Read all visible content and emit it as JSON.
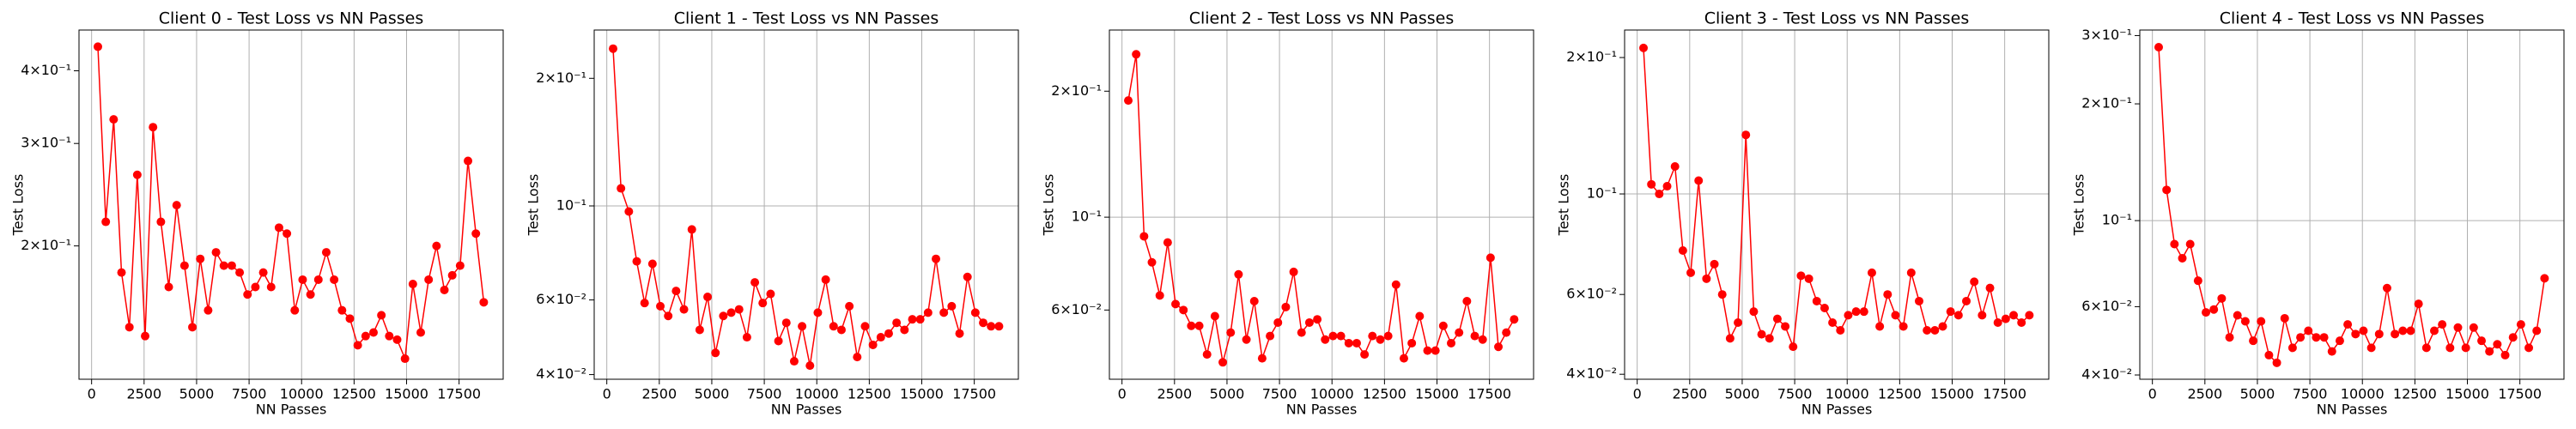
{
  "chart_data": [
    {
      "type": "line",
      "title": "Client 0 - Test Loss vs NN Passes",
      "xlabel": "NN Passes",
      "ylabel": "Test Loss",
      "color": "red",
      "log_y": true,
      "grid_x": true,
      "xlim": [
        -600,
        19600
      ],
      "xticks": [
        0,
        2500,
        5000,
        7500,
        10000,
        12500,
        15000,
        17500
      ],
      "ylim": [
        0.118,
        0.47
      ],
      "yticks": [
        {
          "value": 0.2,
          "label": "2×10⁻¹"
        },
        {
          "value": 0.3,
          "label": "3×10⁻¹"
        },
        {
          "value": 0.4,
          "label": "4×10⁻¹"
        }
      ],
      "ygrid": [],
      "x": [
        300,
        675,
        1050,
        1425,
        1800,
        2175,
        2550,
        2925,
        3300,
        3675,
        4050,
        4425,
        4800,
        5175,
        5550,
        5925,
        6300,
        6675,
        7050,
        7425,
        7800,
        8175,
        8550,
        8925,
        9300,
        9675,
        10050,
        10425,
        10800,
        11175,
        11550,
        11925,
        12300,
        12675,
        13050,
        13425,
        13800,
        14175,
        14550,
        14925,
        15300,
        15675,
        16050,
        16425,
        16800,
        17175,
        17550,
        17925,
        18300,
        18675
      ],
      "values": [
        0.44,
        0.22,
        0.33,
        0.18,
        0.145,
        0.265,
        0.14,
        0.32,
        0.22,
        0.17,
        0.235,
        0.185,
        0.145,
        0.19,
        0.155,
        0.195,
        0.185,
        0.185,
        0.18,
        0.165,
        0.17,
        0.18,
        0.17,
        0.215,
        0.21,
        0.155,
        0.175,
        0.165,
        0.175,
        0.195,
        0.175,
        0.155,
        0.15,
        0.135,
        0.14,
        0.142,
        0.152,
        0.14,
        0.138,
        0.128,
        0.172,
        0.142,
        0.175,
        0.2,
        0.168,
        0.178,
        0.185,
        0.28,
        0.21,
        0.16
      ]
    },
    {
      "type": "line",
      "title": "Client 1 - Test Loss vs NN Passes",
      "xlabel": "NN Passes",
      "ylabel": "Test Loss",
      "color": "red",
      "log_y": true,
      "grid_x": true,
      "xlim": [
        -600,
        19600
      ],
      "xticks": [
        0,
        2500,
        5000,
        7500,
        10000,
        12500,
        15000,
        17500
      ],
      "ylim": [
        0.039,
        0.26
      ],
      "yticks": [
        {
          "value": 0.04,
          "label": "4×10⁻²"
        },
        {
          "value": 0.06,
          "label": "6×10⁻²"
        },
        {
          "value": 0.1,
          "label": "10⁻¹"
        },
        {
          "value": 0.2,
          "label": "2×10⁻¹"
        }
      ],
      "ygrid": [
        0.1
      ],
      "x": [
        300,
        675,
        1050,
        1425,
        1800,
        2175,
        2550,
        2925,
        3300,
        3675,
        4050,
        4425,
        4800,
        5175,
        5550,
        5925,
        6300,
        6675,
        7050,
        7425,
        7800,
        8175,
        8550,
        8925,
        9300,
        9675,
        10050,
        10425,
        10800,
        11175,
        11550,
        11925,
        12300,
        12675,
        13050,
        13425,
        13800,
        14175,
        14550,
        14925,
        15300,
        15675,
        16050,
        16425,
        16800,
        17175,
        17550,
        17925,
        18300,
        18675
      ],
      "values": [
        0.235,
        0.11,
        0.097,
        0.074,
        0.059,
        0.073,
        0.058,
        0.055,
        0.063,
        0.057,
        0.088,
        0.051,
        0.061,
        0.045,
        0.055,
        0.056,
        0.057,
        0.049,
        0.066,
        0.059,
        0.062,
        0.048,
        0.053,
        0.043,
        0.052,
        0.042,
        0.056,
        0.067,
        0.052,
        0.051,
        0.058,
        0.044,
        0.052,
        0.047,
        0.049,
        0.05,
        0.053,
        0.051,
        0.054,
        0.054,
        0.056,
        0.075,
        0.056,
        0.058,
        0.05,
        0.068,
        0.056,
        0.053,
        0.052,
        0.052
      ]
    },
    {
      "type": "line",
      "title": "Client 2 - Test Loss vs NN Passes",
      "xlabel": "NN Passes",
      "ylabel": "Test Loss",
      "color": "red",
      "log_y": true,
      "grid_x": true,
      "xlim": [
        -600,
        19600
      ],
      "xticks": [
        0,
        2500,
        5000,
        7500,
        10000,
        12500,
        15000,
        17500
      ],
      "ylim": [
        0.041,
        0.28
      ],
      "yticks": [
        {
          "value": 0.06,
          "label": "6×10⁻²"
        },
        {
          "value": 0.1,
          "label": "10⁻¹"
        },
        {
          "value": 0.2,
          "label": "2×10⁻¹"
        }
      ],
      "ygrid": [
        0.1
      ],
      "x": [
        300,
        675,
        1050,
        1425,
        1800,
        2175,
        2550,
        2925,
        3300,
        3675,
        4050,
        4425,
        4800,
        5175,
        5550,
        5925,
        6300,
        6675,
        7050,
        7425,
        7800,
        8175,
        8550,
        8925,
        9300,
        9675,
        10050,
        10425,
        10800,
        11175,
        11550,
        11925,
        12300,
        12675,
        13050,
        13425,
        13800,
        14175,
        14550,
        14925,
        15300,
        15675,
        16050,
        16425,
        16800,
        17175,
        17550,
        17925,
        18300,
        18675
      ],
      "values": [
        0.19,
        0.245,
        0.09,
        0.078,
        0.065,
        0.087,
        0.062,
        0.06,
        0.055,
        0.055,
        0.047,
        0.058,
        0.045,
        0.053,
        0.073,
        0.051,
        0.063,
        0.046,
        0.052,
        0.056,
        0.061,
        0.074,
        0.053,
        0.056,
        0.057,
        0.051,
        0.052,
        0.052,
        0.05,
        0.05,
        0.047,
        0.052,
        0.051,
        0.052,
        0.069,
        0.046,
        0.05,
        0.058,
        0.048,
        0.048,
        0.055,
        0.05,
        0.053,
        0.063,
        0.052,
        0.051,
        0.08,
        0.049,
        0.053,
        0.057
      ]
    },
    {
      "type": "line",
      "title": "Client 3 - Test Loss vs NN Passes",
      "xlabel": "NN Passes",
      "ylabel": "Test Loss",
      "color": "red",
      "log_y": true,
      "grid_x": true,
      "xlim": [
        -600,
        19600
      ],
      "xticks": [
        0,
        2500,
        5000,
        7500,
        10000,
        12500,
        15000,
        17500
      ],
      "ylim": [
        0.039,
        0.23
      ],
      "yticks": [
        {
          "value": 0.04,
          "label": "4×10⁻²"
        },
        {
          "value": 0.06,
          "label": "6×10⁻²"
        },
        {
          "value": 0.1,
          "label": "10⁻¹"
        },
        {
          "value": 0.2,
          "label": "2×10⁻¹"
        }
      ],
      "ygrid": [
        0.1
      ],
      "x": [
        300,
        675,
        1050,
        1425,
        1800,
        2175,
        2550,
        2925,
        3300,
        3675,
        4050,
        4425,
        4800,
        5175,
        5550,
        5925,
        6300,
        6675,
        7050,
        7425,
        7800,
        8175,
        8550,
        8925,
        9300,
        9675,
        10050,
        10425,
        10800,
        11175,
        11550,
        11925,
        12300,
        12675,
        13050,
        13425,
        13800,
        14175,
        14550,
        14925,
        15300,
        15675,
        16050,
        16425,
        16800,
        17175,
        17550,
        17925,
        18300,
        18675
      ],
      "values": [
        0.21,
        0.105,
        0.1,
        0.104,
        0.115,
        0.075,
        0.067,
        0.107,
        0.065,
        0.07,
        0.06,
        0.048,
        0.052,
        0.135,
        0.055,
        0.049,
        0.048,
        0.053,
        0.051,
        0.046,
        0.066,
        0.065,
        0.058,
        0.056,
        0.052,
        0.05,
        0.054,
        0.055,
        0.055,
        0.067,
        0.051,
        0.06,
        0.054,
        0.051,
        0.067,
        0.058,
        0.05,
        0.05,
        0.051,
        0.055,
        0.054,
        0.058,
        0.064,
        0.054,
        0.062,
        0.052,
        0.053,
        0.054,
        0.052,
        0.054
      ]
    },
    {
      "type": "line",
      "title": "Client 4 - Test Loss vs NN Passes",
      "xlabel": "NN Passes",
      "ylabel": "Test Loss",
      "color": "red",
      "log_y": true,
      "grid_x": true,
      "xlim": [
        -600,
        19600
      ],
      "xticks": [
        0,
        2500,
        5000,
        7500,
        10000,
        12500,
        15000,
        17500
      ],
      "ylim": [
        0.039,
        0.31
      ],
      "yticks": [
        {
          "value": 0.04,
          "label": "4×10⁻²"
        },
        {
          "value": 0.06,
          "label": "6×10⁻²"
        },
        {
          "value": 0.1,
          "label": "10⁻¹"
        },
        {
          "value": 0.2,
          "label": "2×10⁻¹"
        },
        {
          "value": 0.3,
          "label": "3×10⁻¹"
        }
      ],
      "ygrid": [
        0.1
      ],
      "x": [
        300,
        675,
        1050,
        1425,
        1800,
        2175,
        2550,
        2925,
        3300,
        3675,
        4050,
        4425,
        4800,
        5175,
        5550,
        5925,
        6300,
        6675,
        7050,
        7425,
        7800,
        8175,
        8550,
        8925,
        9300,
        9675,
        10050,
        10425,
        10800,
        11175,
        11550,
        11925,
        12300,
        12675,
        13050,
        13425,
        13800,
        14175,
        14550,
        14925,
        15300,
        15675,
        16050,
        16425,
        16800,
        17175,
        17550,
        17925,
        18300,
        18675
      ],
      "values": [
        0.28,
        0.12,
        0.087,
        0.08,
        0.087,
        0.07,
        0.058,
        0.059,
        0.063,
        0.05,
        0.057,
        0.055,
        0.049,
        0.055,
        0.045,
        0.043,
        0.056,
        0.047,
        0.05,
        0.052,
        0.05,
        0.05,
        0.046,
        0.049,
        0.054,
        0.051,
        0.052,
        0.047,
        0.051,
        0.067,
        0.051,
        0.052,
        0.052,
        0.061,
        0.047,
        0.052,
        0.054,
        0.047,
        0.053,
        0.047,
        0.053,
        0.049,
        0.046,
        0.048,
        0.045,
        0.05,
        0.054,
        0.047,
        0.052,
        0.071
      ]
    }
  ]
}
